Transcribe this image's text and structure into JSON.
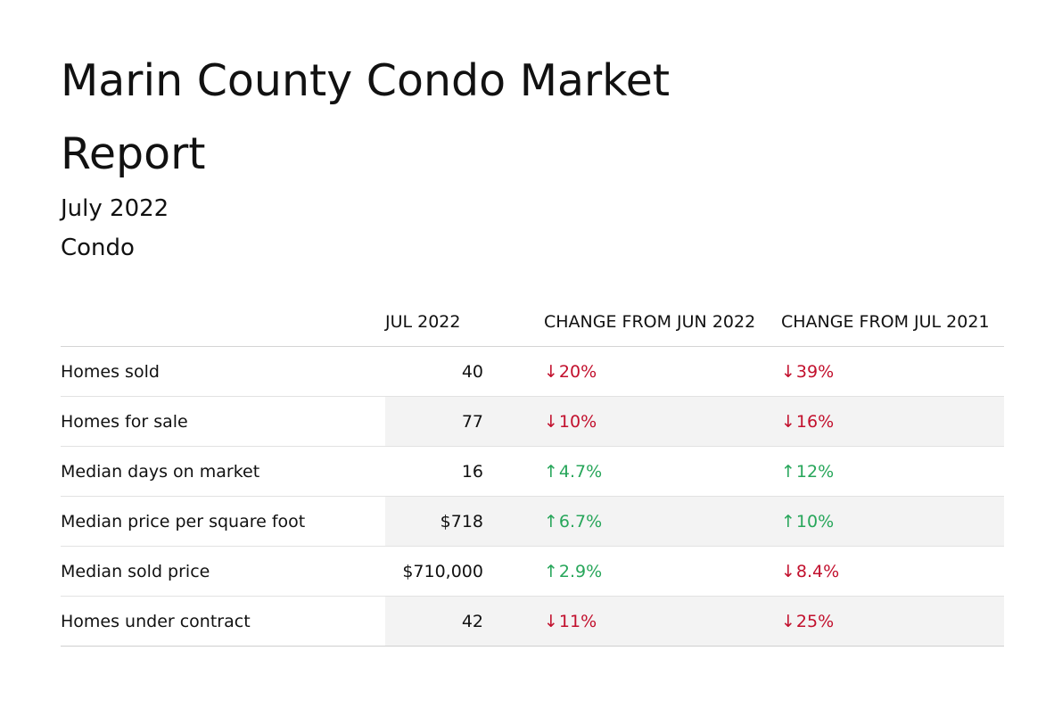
{
  "report": {
    "title": "Marin County Condo Market Report",
    "period": "July 2022",
    "property_type": "Condo"
  },
  "table": {
    "headers": {
      "metric": "",
      "current": "JUL 2022",
      "change_month": "CHANGE FROM JUN 2022",
      "change_year": "CHANGE FROM JUL 2021"
    },
    "rows": [
      {
        "metric": "Homes sold",
        "value": "40",
        "change_month": {
          "direction": "down",
          "arrow": "↓",
          "value": "20%"
        },
        "change_year": {
          "direction": "down",
          "arrow": "↓",
          "value": "39%"
        }
      },
      {
        "metric": "Homes for sale",
        "value": "77",
        "change_month": {
          "direction": "down",
          "arrow": "↓",
          "value": "10%"
        },
        "change_year": {
          "direction": "down",
          "arrow": "↓",
          "value": "16%"
        }
      },
      {
        "metric": "Median days on market",
        "value": "16",
        "change_month": {
          "direction": "up",
          "arrow": "↑",
          "value": "4.7%"
        },
        "change_year": {
          "direction": "up",
          "arrow": "↑",
          "value": "12%"
        }
      },
      {
        "metric": "Median price per square foot",
        "value": "$718",
        "change_month": {
          "direction": "up",
          "arrow": "↑",
          "value": "6.7%"
        },
        "change_year": {
          "direction": "up",
          "arrow": "↑",
          "value": "10%"
        }
      },
      {
        "metric": "Median sold price",
        "value": "$710,000",
        "change_month": {
          "direction": "up",
          "arrow": "↑",
          "value": "2.9%"
        },
        "change_year": {
          "direction": "down",
          "arrow": "↓",
          "value": "8.4%"
        }
      },
      {
        "metric": "Homes under contract",
        "value": "42",
        "change_month": {
          "direction": "down",
          "arrow": "↓",
          "value": "11%"
        },
        "change_year": {
          "direction": "down",
          "arrow": "↓",
          "value": "25%"
        }
      }
    ]
  },
  "colors": {
    "decrease": "#c2102d",
    "increase": "#27a65a",
    "row_shade": "#f3f3f3"
  }
}
